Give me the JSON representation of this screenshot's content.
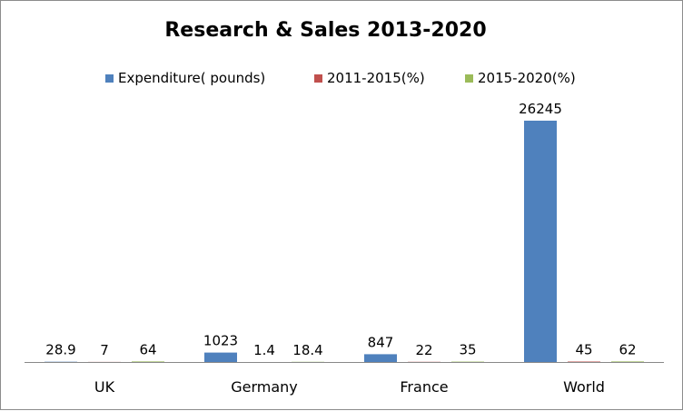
{
  "chart_data": {
    "type": "bar",
    "title": "Research & Sales 2013-2020",
    "categories": [
      "UK",
      "Germany",
      "France",
      "World"
    ],
    "series": [
      {
        "name": "Expenditure( pounds)",
        "color": "#4f81bd",
        "values": [
          28.9,
          1023,
          847,
          26245
        ]
      },
      {
        "name": "2011-2015(%)",
        "color": "#c0504d",
        "values": [
          7,
          1.4,
          22,
          45
        ]
      },
      {
        "name": "2015-2020(%)",
        "color": "#9bbb59",
        "values": [
          64,
          18.4,
          35,
          62
        ]
      }
    ],
    "data_labels": [
      [
        "28.9",
        "1023",
        "847",
        "26245"
      ],
      [
        "7",
        "1.4",
        "22",
        "45"
      ],
      [
        "64",
        "18.4",
        "35",
        "62"
      ]
    ],
    "ylim": [
      0,
      28000
    ],
    "legend_position": "top",
    "grid": false,
    "xlabel": "",
    "ylabel": ""
  }
}
